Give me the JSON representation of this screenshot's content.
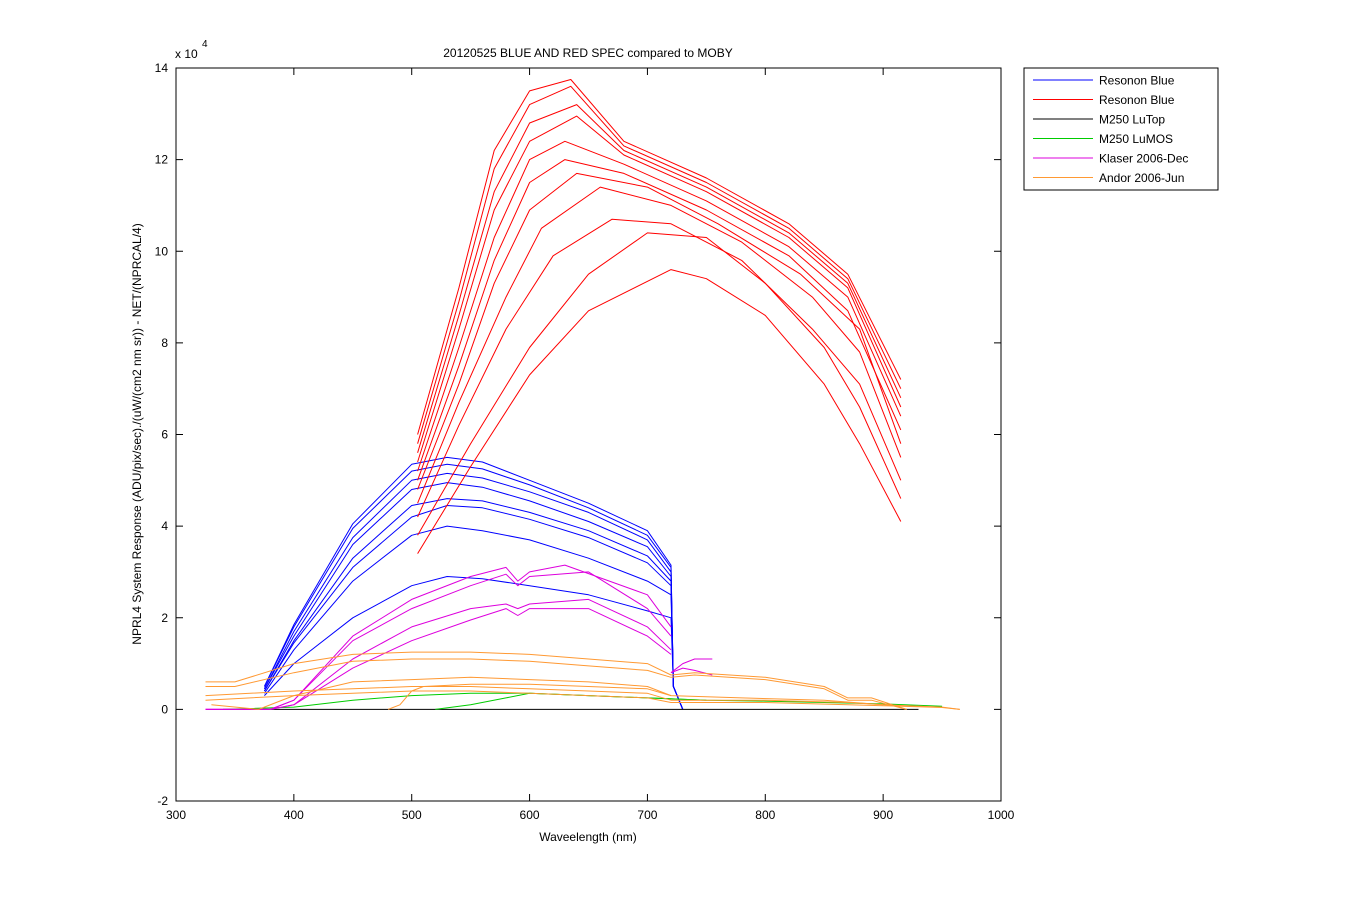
{
  "chart_data": {
    "type": "line",
    "title": "20120525 BLUE AND RED SPEC compared to MOBY",
    "xlabel": "Waveelength (nm)",
    "ylabel": "NPRL4 System Response (ADU/pix/sec)./(uW/(cm2 nm sr)) - NET/(NPRCAL/4)",
    "y_multiplier_base": "x 10",
    "y_multiplier_exp": "4",
    "xlim": [
      300,
      1000
    ],
    "ylim": [
      -2,
      14
    ],
    "y_units_note": "values in units of 1e4",
    "xticks": [
      300,
      400,
      500,
      600,
      700,
      800,
      900,
      1000
    ],
    "xtick_labels": [
      "300",
      "400",
      "500",
      "600",
      "700",
      "800",
      "900",
      "1000"
    ],
    "yticks": [
      -2,
      0,
      2,
      4,
      6,
      8,
      10,
      12,
      14
    ],
    "ytick_labels": [
      "-2",
      "0",
      "2",
      "4",
      "6",
      "8",
      "10",
      "12",
      "14"
    ],
    "grid": false,
    "legend_position": "outside-top-right",
    "legend": [
      {
        "label": "Resonon Blue",
        "color": "#0000ff"
      },
      {
        "label": "Resonon Blue",
        "color": "#ff0000"
      },
      {
        "label": "M250 LuTop",
        "color": "#000000"
      },
      {
        "label": "M250 LuMOS",
        "color": "#00cc00"
      },
      {
        "label": "Klaser 2006-Dec",
        "color": "#dd00dd"
      },
      {
        "label": "Andor 2006-Jun",
        "color": "#ff9933"
      }
    ],
    "series": [
      {
        "group": "blue",
        "color": "#0000ff",
        "x": [
          375,
          400,
          450,
          500,
          530,
          560,
          600,
          650,
          700,
          720,
          722,
          730
        ],
        "y": [
          0.3,
          1.0,
          2.0,
          2.7,
          2.9,
          2.85,
          2.7,
          2.5,
          2.15,
          2.0,
          0.5,
          0.0
        ]
      },
      {
        "group": "blue",
        "color": "#0000ff",
        "x": [
          375,
          400,
          450,
          500,
          530,
          560,
          600,
          650,
          700,
          720,
          722,
          730
        ],
        "y": [
          0.35,
          1.3,
          2.8,
          3.8,
          4.0,
          3.9,
          3.7,
          3.3,
          2.8,
          2.5,
          0.5,
          0.0
        ]
      },
      {
        "group": "blue",
        "color": "#0000ff",
        "x": [
          375,
          400,
          450,
          500,
          530,
          560,
          600,
          650,
          700,
          720,
          722,
          730
        ],
        "y": [
          0.4,
          1.45,
          3.1,
          4.2,
          4.45,
          4.4,
          4.15,
          3.75,
          3.2,
          2.7,
          0.5,
          0.0
        ]
      },
      {
        "group": "blue",
        "color": "#0000ff",
        "x": [
          375,
          400,
          450,
          500,
          530,
          560,
          600,
          650,
          700,
          720,
          722,
          730
        ],
        "y": [
          0.4,
          1.5,
          3.3,
          4.45,
          4.6,
          4.55,
          4.3,
          3.9,
          3.35,
          2.8,
          0.5,
          0.0
        ]
      },
      {
        "group": "blue",
        "color": "#0000ff",
        "x": [
          375,
          400,
          450,
          500,
          530,
          560,
          600,
          650,
          700,
          720,
          722,
          730
        ],
        "y": [
          0.45,
          1.6,
          3.6,
          4.8,
          4.95,
          4.85,
          4.55,
          4.1,
          3.55,
          2.9,
          0.5,
          0.0
        ]
      },
      {
        "group": "blue",
        "color": "#0000ff",
        "x": [
          375,
          400,
          450,
          500,
          530,
          560,
          600,
          650,
          700,
          720,
          722,
          730
        ],
        "y": [
          0.45,
          1.7,
          3.75,
          5.0,
          5.15,
          5.05,
          4.75,
          4.3,
          3.7,
          3.0,
          0.5,
          0.0
        ]
      },
      {
        "group": "blue",
        "color": "#0000ff",
        "x": [
          375,
          400,
          450,
          500,
          530,
          560,
          600,
          650,
          700,
          720,
          722,
          730
        ],
        "y": [
          0.5,
          1.8,
          3.95,
          5.2,
          5.35,
          5.25,
          4.9,
          4.4,
          3.8,
          3.1,
          0.5,
          0.0
        ]
      },
      {
        "group": "blue",
        "color": "#0000ff",
        "x": [
          375,
          400,
          450,
          500,
          530,
          560,
          600,
          650,
          700,
          720,
          722,
          730
        ],
        "y": [
          0.5,
          1.85,
          4.05,
          5.35,
          5.5,
          5.4,
          5.0,
          4.5,
          3.9,
          3.15,
          0.5,
          0.0
        ]
      },
      {
        "group": "red",
        "color": "#ff0000",
        "x": [
          505,
          550,
          600,
          650,
          720,
          750,
          800,
          850,
          880,
          915
        ],
        "y": [
          3.4,
          5.3,
          7.3,
          8.7,
          9.6,
          9.4,
          8.6,
          7.1,
          5.8,
          4.1
        ]
      },
      {
        "group": "red",
        "color": "#ff0000",
        "x": [
          505,
          550,
          600,
          650,
          700,
          750,
          800,
          850,
          880,
          915
        ],
        "y": [
          3.8,
          5.8,
          7.9,
          9.5,
          10.4,
          10.3,
          9.3,
          7.9,
          6.6,
          4.6
        ]
      },
      {
        "group": "red",
        "color": "#ff0000",
        "x": [
          505,
          540,
          580,
          620,
          670,
          720,
          780,
          840,
          880,
          915
        ],
        "y": [
          4.2,
          6.2,
          8.3,
          9.9,
          10.7,
          10.6,
          9.8,
          8.3,
          7.1,
          5.0
        ]
      },
      {
        "group": "red",
        "color": "#ff0000",
        "x": [
          505,
          540,
          580,
          610,
          660,
          720,
          780,
          840,
          880,
          915
        ],
        "y": [
          4.5,
          6.7,
          9.0,
          10.5,
          11.4,
          11.0,
          10.2,
          9.0,
          7.8,
          5.5
        ]
      },
      {
        "group": "red",
        "color": "#ff0000",
        "x": [
          505,
          540,
          570,
          600,
          640,
          700,
          760,
          830,
          880,
          915
        ],
        "y": [
          4.8,
          7.1,
          9.3,
          10.9,
          11.7,
          11.4,
          10.6,
          9.5,
          8.3,
          5.8
        ]
      },
      {
        "group": "red",
        "color": "#ff0000",
        "x": [
          505,
          540,
          570,
          600,
          630,
          680,
          750,
          820,
          870,
          915
        ],
        "y": [
          5.0,
          7.5,
          9.8,
          11.5,
          12.0,
          11.7,
          10.9,
          9.9,
          8.7,
          6.1
        ]
      },
      {
        "group": "red",
        "color": "#ff0000",
        "x": [
          505,
          540,
          570,
          600,
          630,
          680,
          750,
          820,
          870,
          915
        ],
        "y": [
          5.2,
          7.9,
          10.3,
          12.0,
          12.4,
          11.9,
          11.1,
          10.1,
          9.0,
          6.4
        ]
      },
      {
        "group": "red",
        "color": "#ff0000",
        "x": [
          505,
          540,
          570,
          600,
          640,
          680,
          750,
          820,
          870,
          915
        ],
        "y": [
          5.4,
          8.3,
          10.9,
          12.4,
          12.95,
          12.1,
          11.3,
          10.3,
          9.2,
          6.6
        ]
      },
      {
        "group": "red",
        "color": "#ff0000",
        "x": [
          505,
          540,
          570,
          600,
          640,
          680,
          750,
          820,
          870,
          915
        ],
        "y": [
          5.6,
          8.6,
          11.3,
          12.8,
          13.2,
          12.2,
          11.4,
          10.4,
          9.3,
          6.8
        ]
      },
      {
        "group": "red",
        "color": "#ff0000",
        "x": [
          505,
          540,
          570,
          600,
          635,
          680,
          750,
          820,
          870,
          915
        ],
        "y": [
          5.8,
          8.9,
          11.8,
          13.2,
          13.6,
          12.3,
          11.5,
          10.5,
          9.4,
          7.0
        ]
      },
      {
        "group": "red",
        "color": "#ff0000",
        "x": [
          505,
          540,
          570,
          600,
          635,
          680,
          750,
          820,
          870,
          915
        ],
        "y": [
          6.0,
          9.2,
          12.2,
          13.5,
          13.75,
          12.4,
          11.6,
          10.6,
          9.5,
          7.2
        ]
      },
      {
        "group": "black",
        "color": "#000000",
        "x": [
          340,
          930
        ],
        "y": [
          0.0,
          0.0
        ]
      },
      {
        "group": "green",
        "color": "#00cc00",
        "x": [
          340,
          400,
          450,
          500,
          550,
          600,
          650,
          700,
          750,
          800,
          850,
          900,
          950
        ],
        "y": [
          0.0,
          0.05,
          0.2,
          0.3,
          0.35,
          0.35,
          0.3,
          0.25,
          0.2,
          0.18,
          0.15,
          0.12,
          0.07
        ]
      },
      {
        "group": "green",
        "color": "#00cc00",
        "x": [
          520,
          550,
          580,
          600,
          650,
          700,
          750
        ],
        "y": [
          0.0,
          0.1,
          0.25,
          0.35,
          0.3,
          0.25,
          0.2
        ]
      },
      {
        "group": "magenta",
        "color": "#dd00dd",
        "x": [
          325,
          380,
          400,
          450,
          500,
          550,
          580,
          590,
          600,
          650,
          700,
          720
        ],
        "y": [
          0.0,
          0.0,
          0.1,
          0.9,
          1.5,
          1.95,
          2.2,
          2.05,
          2.2,
          2.2,
          1.6,
          1.2
        ]
      },
      {
        "group": "magenta",
        "color": "#dd00dd",
        "x": [
          325,
          380,
          400,
          450,
          500,
          550,
          580,
          590,
          600,
          650,
          700,
          720
        ],
        "y": [
          0.0,
          0.0,
          0.1,
          1.1,
          1.8,
          2.2,
          2.3,
          2.2,
          2.3,
          2.4,
          1.8,
          1.3
        ]
      },
      {
        "group": "magenta",
        "color": "#dd00dd",
        "x": [
          325,
          380,
          400,
          450,
          500,
          550,
          580,
          590,
          600,
          650,
          700,
          720
        ],
        "y": [
          0.0,
          0.0,
          0.2,
          1.5,
          2.2,
          2.7,
          2.95,
          2.7,
          2.9,
          3.0,
          2.2,
          1.6
        ]
      },
      {
        "group": "magenta",
        "color": "#dd00dd",
        "x": [
          325,
          380,
          400,
          450,
          500,
          550,
          580,
          590,
          600,
          630,
          700,
          720
        ],
        "y": [
          0.0,
          0.0,
          0.2,
          1.6,
          2.4,
          2.9,
          3.1,
          2.8,
          3.0,
          3.15,
          2.5,
          1.8
        ]
      },
      {
        "group": "magenta",
        "color": "#dd00dd",
        "x": [
          720,
          730,
          740,
          755
        ],
        "y": [
          0.8,
          0.9,
          0.85,
          0.75
        ]
      },
      {
        "group": "magenta",
        "color": "#dd00dd",
        "x": [
          720,
          730,
          740,
          755
        ],
        "y": [
          0.8,
          1.0,
          1.1,
          1.1
        ]
      },
      {
        "group": "orange",
        "color": "#ff9933",
        "x": [
          325,
          350,
          400,
          450,
          500,
          550,
          600,
          650,
          700,
          720,
          740,
          800,
          850,
          870,
          890,
          920
        ],
        "y": [
          0.6,
          0.6,
          1.0,
          1.2,
          1.25,
          1.25,
          1.2,
          1.1,
          1.0,
          0.75,
          0.8,
          0.7,
          0.5,
          0.25,
          0.25,
          0.0
        ]
      },
      {
        "group": "orange",
        "color": "#ff9933",
        "x": [
          325,
          350,
          400,
          450,
          500,
          550,
          600,
          650,
          700,
          720,
          740,
          800,
          850,
          870,
          890,
          920
        ],
        "y": [
          0.5,
          0.5,
          0.8,
          1.05,
          1.1,
          1.1,
          1.05,
          0.95,
          0.85,
          0.7,
          0.75,
          0.65,
          0.45,
          0.2,
          0.2,
          0.0
        ]
      },
      {
        "group": "orange",
        "color": "#ff9933",
        "x": [
          325,
          400,
          450,
          500,
          550,
          600,
          650,
          700,
          720,
          800,
          870,
          900,
          950,
          965
        ],
        "y": [
          0.3,
          0.4,
          0.45,
          0.5,
          0.5,
          0.45,
          0.4,
          0.35,
          0.2,
          0.2,
          0.15,
          0.1,
          0.05,
          0.0
        ]
      },
      {
        "group": "orange",
        "color": "#ff9933",
        "x": [
          325,
          400,
          450,
          500,
          550,
          600,
          650,
          700,
          720,
          800,
          870,
          900,
          950,
          965
        ],
        "y": [
          0.2,
          0.3,
          0.35,
          0.4,
          0.4,
          0.35,
          0.3,
          0.25,
          0.15,
          0.15,
          0.1,
          0.08,
          0.04,
          0.0
        ]
      },
      {
        "group": "orange",
        "color": "#ff9933",
        "x": [
          330,
          370,
          400,
          450,
          500,
          550,
          600,
          650,
          700,
          720,
          780,
          850,
          900
        ],
        "y": [
          0.1,
          0.0,
          0.3,
          0.6,
          0.65,
          0.7,
          0.65,
          0.6,
          0.5,
          0.3,
          0.25,
          0.2,
          0.1
        ]
      },
      {
        "group": "orange",
        "color": "#ff9933",
        "x": [
          480,
          490,
          500,
          510,
          550,
          600,
          650,
          700,
          720
        ],
        "y": [
          0.0,
          0.1,
          0.4,
          0.5,
          0.55,
          0.55,
          0.5,
          0.45,
          0.3
        ]
      }
    ]
  }
}
